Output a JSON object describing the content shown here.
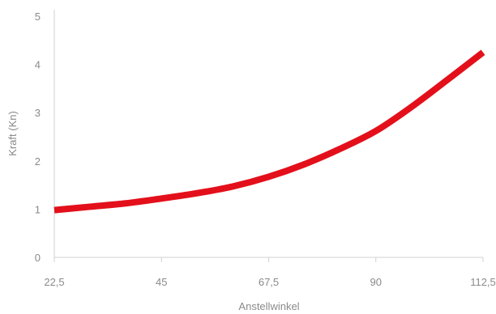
{
  "chart_data": {
    "type": "line",
    "xlabel": "Anstellwinkel",
    "ylabel": "Kraft (Kn)",
    "x_tick_labels": [
      "22,5",
      "45",
      "67,5",
      "90",
      "112,5"
    ],
    "y_tick_labels": [
      "0",
      "1",
      "2",
      "3",
      "4",
      "5"
    ],
    "xlim": [
      22.5,
      112.5
    ],
    "ylim": [
      0,
      5
    ],
    "grid": false,
    "series": [
      {
        "x": [
          22.5,
          30,
          37.5,
          45,
          52.5,
          60,
          67.5,
          75,
          82.5,
          90,
          97.5,
          105,
          112.5
        ],
        "y": [
          0.98,
          1.05,
          1.12,
          1.22,
          1.33,
          1.47,
          1.67,
          1.93,
          2.25,
          2.62,
          3.12,
          3.68,
          4.25
        ],
        "color": "#e3101b"
      }
    ]
  }
}
